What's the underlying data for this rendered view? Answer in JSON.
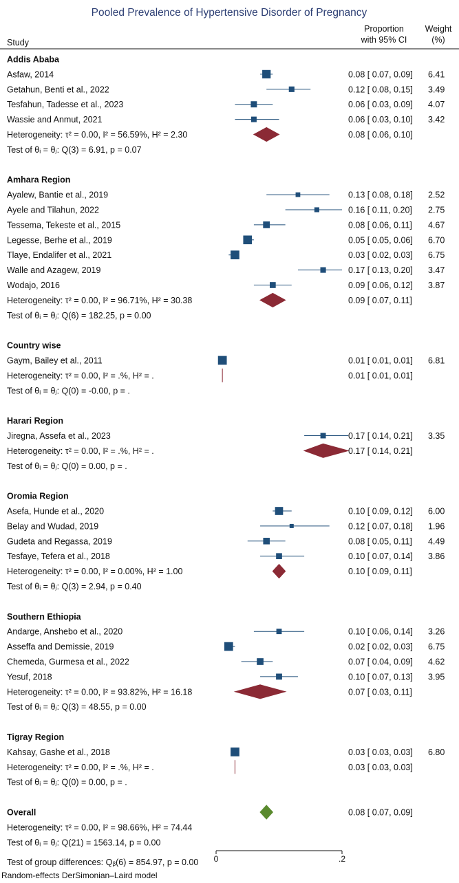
{
  "chart_data": {
    "type": "forest",
    "title": "Pooled Prevalence of Hypertensive Disorder of Pregnancy",
    "header": {
      "study": "Study",
      "proportion_line1": "Proportion",
      "proportion_line2": "with 95% CI",
      "weight_line1": "Weight",
      "weight_line2": "(%)"
    },
    "xlim": [
      0,
      0.2
    ],
    "ticks": [
      {
        "value": 0,
        "label": "0"
      },
      {
        "value": 0.2,
        "label": ".2"
      }
    ],
    "groups": [
      {
        "name": "Addis Ababa",
        "studies": [
          {
            "label": "Asfaw, 2014",
            "est": 0.08,
            "lo": 0.07,
            "hi": 0.09,
            "ci_text": "0.08 [ 0.07, 0.09]",
            "weight": "6.41"
          },
          {
            "label": "Getahun, Benti et al., 2022",
            "est": 0.12,
            "lo": 0.08,
            "hi": 0.15,
            "ci_text": "0.12 [ 0.08, 0.15]",
            "weight": "3.49"
          },
          {
            "label": "Tesfahun, Tadesse et al., 2023",
            "est": 0.06,
            "lo": 0.03,
            "hi": 0.09,
            "ci_text": "0.06 [ 0.03, 0.09]",
            "weight": "4.07"
          },
          {
            "label": "Wassie and Anmut, 2021",
            "est": 0.06,
            "lo": 0.03,
            "hi": 0.1,
            "ci_text": "0.06 [ 0.03, 0.10]",
            "weight": "3.42"
          }
        ],
        "pooled": {
          "est": 0.08,
          "lo": 0.06,
          "hi": 0.1,
          "ci_text": "0.08 [ 0.06, 0.10]",
          "heterogeneity": "Heterogeneity: τ² = 0.00, I² = 56.59%, H² = 2.30"
        },
        "test": "Test of θᵢ = θⱼ: Q(3) = 6.91, p = 0.07"
      },
      {
        "name": "Amhara Region",
        "studies": [
          {
            "label": "Ayalew, Bantie et al., 2019",
            "est": 0.13,
            "lo": 0.08,
            "hi": 0.18,
            "ci_text": "0.13 [ 0.08, 0.18]",
            "weight": "2.52"
          },
          {
            "label": "Ayele and Tilahun, 2022",
            "est": 0.16,
            "lo": 0.11,
            "hi": 0.2,
            "ci_text": "0.16 [ 0.11, 0.20]",
            "weight": "2.75"
          },
          {
            "label": "Tessema, Tekeste et al., 2015",
            "est": 0.08,
            "lo": 0.06,
            "hi": 0.11,
            "ci_text": "0.08 [ 0.06, 0.11]",
            "weight": "4.67"
          },
          {
            "label": "Legesse, Berhe et al., 2019",
            "est": 0.05,
            "lo": 0.05,
            "hi": 0.06,
            "ci_text": "0.05 [ 0.05, 0.06]",
            "weight": "6.70"
          },
          {
            "label": "Tlaye, Endalifer et al., 2021",
            "est": 0.03,
            "lo": 0.02,
            "hi": 0.03,
            "ci_text": "0.03 [ 0.02, 0.03]",
            "weight": "6.75"
          },
          {
            "label": "Walle and Azagew, 2019",
            "est": 0.17,
            "lo": 0.13,
            "hi": 0.2,
            "ci_text": "0.17 [ 0.13, 0.20]",
            "weight": "3.47"
          },
          {
            "label": "Wodajo, 2016",
            "est": 0.09,
            "lo": 0.06,
            "hi": 0.12,
            "ci_text": "0.09 [ 0.06, 0.12]",
            "weight": "3.87"
          }
        ],
        "pooled": {
          "est": 0.09,
          "lo": 0.07,
          "hi": 0.11,
          "ci_text": "0.09 [ 0.07, 0.11]",
          "heterogeneity": "Heterogeneity: τ² = 0.00, I² = 96.71%, H² = 30.38"
        },
        "test": "Test of θᵢ = θⱼ: Q(6) = 182.25, p = 0.00"
      },
      {
        "name": "Country wise",
        "studies": [
          {
            "label": "Gaym, Bailey et al., 2011",
            "est": 0.01,
            "lo": 0.01,
            "hi": 0.01,
            "ci_text": "0.01 [ 0.01, 0.01]",
            "weight": "6.81"
          }
        ],
        "pooled": {
          "est": 0.01,
          "lo": 0.01,
          "hi": 0.01,
          "ci_text": "0.01 [ 0.01, 0.01]",
          "heterogeneity": "Heterogeneity: τ² = 0.00, I² = .%, H² = ."
        },
        "test": "Test of θᵢ = θⱼ: Q(0) = -0.00, p = ."
      },
      {
        "name": "Harari Region",
        "studies": [
          {
            "label": "Jiregna, Assefa et al., 2023",
            "est": 0.17,
            "lo": 0.14,
            "hi": 0.21,
            "ci_text": "0.17 [ 0.14, 0.21]",
            "weight": "3.35"
          }
        ],
        "pooled": {
          "est": 0.17,
          "lo": 0.14,
          "hi": 0.21,
          "ci_text": "0.17 [ 0.14, 0.21]",
          "heterogeneity": "Heterogeneity: τ² = 0.00, I² = .%, H² = ."
        },
        "test": "Test of θᵢ = θⱼ: Q(0) = 0.00, p = ."
      },
      {
        "name": "Oromia Region",
        "studies": [
          {
            "label": "Asefa, Hunde et al., 2020",
            "est": 0.1,
            "lo": 0.09,
            "hi": 0.12,
            "ci_text": "0.10 [ 0.09, 0.12]",
            "weight": "6.00"
          },
          {
            "label": "Belay and Wudad, 2019",
            "est": 0.12,
            "lo": 0.07,
            "hi": 0.18,
            "ci_text": "0.12 [ 0.07, 0.18]",
            "weight": "1.96"
          },
          {
            "label": "Gudeta and Regassa, 2019",
            "est": 0.08,
            "lo": 0.05,
            "hi": 0.11,
            "ci_text": "0.08 [ 0.05, 0.11]",
            "weight": "4.49"
          },
          {
            "label": "Tesfaye, Tefera et al., 2018",
            "est": 0.1,
            "lo": 0.07,
            "hi": 0.14,
            "ci_text": "0.10 [ 0.07, 0.14]",
            "weight": "3.86"
          }
        ],
        "pooled": {
          "est": 0.1,
          "lo": 0.09,
          "hi": 0.11,
          "ci_text": "0.10 [ 0.09, 0.11]",
          "heterogeneity": "Heterogeneity: τ² = 0.00, I² = 0.00%, H² = 1.00"
        },
        "test": "Test of θᵢ = θⱼ: Q(3) = 2.94, p = 0.40"
      },
      {
        "name": "Southern Ethiopia",
        "studies": [
          {
            "label": "Andarge, Anshebo et al., 2020",
            "est": 0.1,
            "lo": 0.06,
            "hi": 0.14,
            "ci_text": "0.10 [ 0.06, 0.14]",
            "weight": "3.26"
          },
          {
            "label": "Asseffa and Demissie, 2019",
            "est": 0.02,
            "lo": 0.02,
            "hi": 0.03,
            "ci_text": "0.02 [ 0.02, 0.03]",
            "weight": "6.75"
          },
          {
            "label": "Chemeda, Gurmesa et al., 2022",
            "est": 0.07,
            "lo": 0.04,
            "hi": 0.09,
            "ci_text": "0.07 [ 0.04, 0.09]",
            "weight": "4.62"
          },
          {
            "label": "Yesuf, 2018",
            "est": 0.1,
            "lo": 0.07,
            "hi": 0.13,
            "ci_text": "0.10 [ 0.07, 0.13]",
            "weight": "3.95"
          }
        ],
        "pooled": {
          "est": 0.07,
          "lo": 0.03,
          "hi": 0.11,
          "ci_text": "0.07 [ 0.03, 0.11]",
          "heterogeneity": "Heterogeneity: τ² = 0.00, I² = 93.82%, H² = 16.18"
        },
        "test": "Test of θᵢ = θⱼ: Q(3) = 48.55, p = 0.00"
      },
      {
        "name": "Tigray Region",
        "studies": [
          {
            "label": "Kahsay, Gashe et al., 2018",
            "est": 0.03,
            "lo": 0.03,
            "hi": 0.03,
            "ci_text": "0.03 [ 0.03, 0.03]",
            "weight": "6.80"
          }
        ],
        "pooled": {
          "est": 0.03,
          "lo": 0.03,
          "hi": 0.03,
          "ci_text": "0.03 [ 0.03, 0.03]",
          "heterogeneity": "Heterogeneity: τ² = 0.00, I² = .%, H² = ."
        },
        "test": "Test of θᵢ = θⱼ: Q(0) = 0.00, p = ."
      }
    ],
    "overall": {
      "name": "Overall",
      "est": 0.08,
      "lo": 0.07,
      "hi": 0.09,
      "ci_text": "0.08 [ 0.07, 0.09]",
      "heterogeneity": "Heterogeneity: τ² = 0.00, I² = 98.66%, H² = 74.44",
      "test": "Test of θᵢ = θⱼ: Q(21) = 1563.14, p = 0.00",
      "group_test": "Test of group differences: Qᵦ(6) = 854.97, p = 0.00"
    },
    "footnote": "Random-effects DerSimonian–Laird model",
    "colors": {
      "title": "#2c3e73",
      "study_marker": "#1f4e79",
      "ci_line": "#1f4e79",
      "pooled_diamond": "#8b2a35",
      "overall_diamond": "#5a8a2e",
      "text": "#111111",
      "axis": "#111111"
    }
  }
}
